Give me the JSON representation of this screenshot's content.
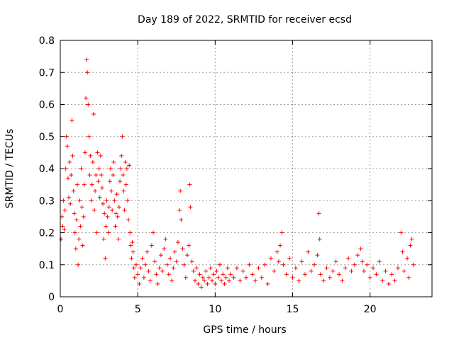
{
  "chart_data": {
    "type": "scatter",
    "title": "Day 189 of 2022, SRMTID for receiver ecsd",
    "xlabel": "GPS time / hours",
    "ylabel": "SRMTID / TECUs",
    "xlim": [
      0,
      24
    ],
    "ylim": [
      0,
      0.8
    ],
    "xticks": [
      "0",
      "5",
      "10",
      "15",
      "20"
    ],
    "yticks": [
      "0",
      "0.1",
      "0.2",
      "0.3",
      "0.4",
      "0.5",
      "0.6",
      "0.7",
      "0.8"
    ],
    "grid": true,
    "marker": "+",
    "color": "#ff0000",
    "series": [
      {
        "name": "SRMTID",
        "points": [
          [
            0.05,
            0.18
          ],
          [
            0.1,
            0.25
          ],
          [
            0.15,
            0.22
          ],
          [
            0.2,
            0.3
          ],
          [
            0.25,
            0.21
          ],
          [
            0.3,
            0.27
          ],
          [
            0.35,
            0.4
          ],
          [
            0.4,
            0.5
          ],
          [
            0.45,
            0.47
          ],
          [
            0.5,
            0.37
          ],
          [
            0.55,
            0.31
          ],
          [
            0.6,
            0.42
          ],
          [
            0.65,
            0.29
          ],
          [
            0.7,
            0.38
          ],
          [
            0.75,
            0.55
          ],
          [
            0.8,
            0.44
          ],
          [
            0.85,
            0.33
          ],
          [
            0.9,
            0.26
          ],
          [
            0.95,
            0.2
          ],
          [
            1.0,
            0.15
          ],
          [
            1.05,
            0.24
          ],
          [
            1.1,
            0.35
          ],
          [
            1.15,
            0.1
          ],
          [
            1.2,
            0.18
          ],
          [
            1.25,
            0.3
          ],
          [
            1.3,
            0.22
          ],
          [
            1.35,
            0.4
          ],
          [
            1.4,
            0.28
          ],
          [
            1.45,
            0.16
          ],
          [
            1.5,
            0.25
          ],
          [
            1.55,
            0.35
          ],
          [
            1.6,
            0.45
          ],
          [
            1.65,
            0.62
          ],
          [
            1.7,
            0.74
          ],
          [
            1.75,
            0.7
          ],
          [
            1.8,
            0.6
          ],
          [
            1.85,
            0.5
          ],
          [
            1.9,
            0.38
          ],
          [
            1.95,
            0.44
          ],
          [
            2.0,
            0.3
          ],
          [
            2.05,
            0.35
          ],
          [
            2.1,
            0.42
          ],
          [
            2.15,
            0.57
          ],
          [
            2.2,
            0.27
          ],
          [
            2.25,
            0.33
          ],
          [
            2.3,
            0.38
          ],
          [
            2.35,
            0.2
          ],
          [
            2.4,
            0.45
          ],
          [
            2.45,
            0.36
          ],
          [
            2.5,
            0.4
          ],
          [
            2.55,
            0.31
          ],
          [
            2.6,
            0.44
          ],
          [
            2.65,
            0.38
          ],
          [
            2.7,
            0.34
          ],
          [
            2.75,
            0.29
          ],
          [
            2.8,
            0.18
          ],
          [
            2.85,
            0.26
          ],
          [
            2.9,
            0.12
          ],
          [
            2.95,
            0.22
          ],
          [
            3.0,
            0.3
          ],
          [
            3.05,
            0.25
          ],
          [
            3.1,
            0.2
          ],
          [
            3.15,
            0.28
          ],
          [
            3.2,
            0.36
          ],
          [
            3.25,
            0.4
          ],
          [
            3.3,
            0.33
          ],
          [
            3.35,
            0.27
          ],
          [
            3.4,
            0.38
          ],
          [
            3.45,
            0.42
          ],
          [
            3.5,
            0.3
          ],
          [
            3.55,
            0.22
          ],
          [
            3.6,
            0.26
          ],
          [
            3.65,
            0.32
          ],
          [
            3.7,
            0.25
          ],
          [
            3.75,
            0.18
          ],
          [
            3.8,
            0.28
          ],
          [
            3.85,
            0.36
          ],
          [
            3.9,
            0.4
          ],
          [
            3.95,
            0.44
          ],
          [
            4.0,
            0.5
          ],
          [
            4.05,
            0.38
          ],
          [
            4.1,
            0.33
          ],
          [
            4.15,
            0.27
          ],
          [
            4.2,
            0.42
          ],
          [
            4.25,
            0.35
          ],
          [
            4.3,
            0.4
          ],
          [
            4.35,
            0.3
          ],
          [
            4.4,
            0.24
          ],
          [
            4.45,
            0.41
          ],
          [
            4.5,
            0.2
          ],
          [
            4.55,
            0.16
          ],
          [
            4.6,
            0.12
          ],
          [
            4.65,
            0.17
          ],
          [
            4.7,
            0.14
          ],
          [
            4.75,
            0.09
          ],
          [
            4.8,
            0.06
          ],
          [
            4.9,
            0.1
          ],
          [
            5.0,
            0.07
          ],
          [
            5.1,
            0.04
          ],
          [
            5.2,
            0.09
          ],
          [
            5.3,
            0.12
          ],
          [
            5.4,
            0.06
          ],
          [
            5.5,
            0.1
          ],
          [
            5.6,
            0.14
          ],
          [
            5.7,
            0.08
          ],
          [
            5.8,
            0.05
          ],
          [
            5.9,
            0.16
          ],
          [
            6.0,
            0.2
          ],
          [
            6.1,
            0.11
          ],
          [
            6.2,
            0.07
          ],
          [
            6.3,
            0.04
          ],
          [
            6.4,
            0.09
          ],
          [
            6.5,
            0.13
          ],
          [
            6.6,
            0.08
          ],
          [
            6.7,
            0.15
          ],
          [
            6.8,
            0.18
          ],
          [
            6.9,
            0.1
          ],
          [
            7.0,
            0.07
          ],
          [
            7.1,
            0.12
          ],
          [
            7.2,
            0.05
          ],
          [
            7.3,
            0.09
          ],
          [
            7.4,
            0.14
          ],
          [
            7.5,
            0.11
          ],
          [
            7.6,
            0.17
          ],
          [
            7.7,
            0.27
          ],
          [
            7.75,
            0.33
          ],
          [
            7.8,
            0.24
          ],
          [
            7.9,
            0.15
          ],
          [
            8.0,
            0.1
          ],
          [
            8.1,
            0.06
          ],
          [
            8.2,
            0.13
          ],
          [
            8.3,
            0.16
          ],
          [
            8.35,
            0.35
          ],
          [
            8.4,
            0.28
          ],
          [
            8.5,
            0.11
          ],
          [
            8.6,
            0.08
          ],
          [
            8.7,
            0.05
          ],
          [
            8.8,
            0.09
          ],
          [
            8.9,
            0.04
          ],
          [
            9.0,
            0.07
          ],
          [
            9.1,
            0.03
          ],
          [
            9.2,
            0.06
          ],
          [
            9.3,
            0.05
          ],
          [
            9.4,
            0.08
          ],
          [
            9.5,
            0.04
          ],
          [
            9.6,
            0.06
          ],
          [
            9.7,
            0.09
          ],
          [
            9.8,
            0.05
          ],
          [
            9.9,
            0.07
          ],
          [
            10.0,
            0.04
          ],
          [
            10.1,
            0.08
          ],
          [
            10.2,
            0.06
          ],
          [
            10.3,
            0.1
          ],
          [
            10.4,
            0.05
          ],
          [
            10.5,
            0.07
          ],
          [
            10.6,
            0.04
          ],
          [
            10.7,
            0.06
          ],
          [
            10.8,
            0.09
          ],
          [
            10.9,
            0.05
          ],
          [
            11.0,
            0.07
          ],
          [
            11.2,
            0.06
          ],
          [
            11.4,
            0.09
          ],
          [
            11.6,
            0.05
          ],
          [
            11.8,
            0.08
          ],
          [
            12.0,
            0.06
          ],
          [
            12.2,
            0.1
          ],
          [
            12.4,
            0.07
          ],
          [
            12.6,
            0.05
          ],
          [
            12.8,
            0.09
          ],
          [
            13.0,
            0.06
          ],
          [
            13.2,
            0.1
          ],
          [
            13.4,
            0.04
          ],
          [
            13.6,
            0.12
          ],
          [
            13.8,
            0.08
          ],
          [
            14.0,
            0.14
          ],
          [
            14.1,
            0.11
          ],
          [
            14.2,
            0.16
          ],
          [
            14.3,
            0.2
          ],
          [
            14.4,
            0.1
          ],
          [
            14.6,
            0.07
          ],
          [
            14.8,
            0.12
          ],
          [
            15.0,
            0.06
          ],
          [
            15.2,
            0.09
          ],
          [
            15.4,
            0.05
          ],
          [
            15.6,
            0.11
          ],
          [
            15.8,
            0.07
          ],
          [
            16.0,
            0.14
          ],
          [
            16.2,
            0.08
          ],
          [
            16.4,
            0.1
          ],
          [
            16.6,
            0.13
          ],
          [
            16.7,
            0.26
          ],
          [
            16.75,
            0.18
          ],
          [
            16.8,
            0.07
          ],
          [
            17.0,
            0.05
          ],
          [
            17.2,
            0.09
          ],
          [
            17.4,
            0.06
          ],
          [
            17.6,
            0.08
          ],
          [
            17.8,
            0.11
          ],
          [
            18.0,
            0.07
          ],
          [
            18.2,
            0.05
          ],
          [
            18.4,
            0.09
          ],
          [
            18.6,
            0.12
          ],
          [
            18.8,
            0.08
          ],
          [
            19.0,
            0.1
          ],
          [
            19.2,
            0.13
          ],
          [
            19.4,
            0.15
          ],
          [
            19.5,
            0.11
          ],
          [
            19.6,
            0.08
          ],
          [
            19.8,
            0.1
          ],
          [
            20.0,
            0.06
          ],
          [
            20.2,
            0.09
          ],
          [
            20.4,
            0.07
          ],
          [
            20.6,
            0.11
          ],
          [
            20.8,
            0.05
          ],
          [
            21.0,
            0.08
          ],
          [
            21.2,
            0.04
          ],
          [
            21.4,
            0.07
          ],
          [
            21.6,
            0.05
          ],
          [
            21.8,
            0.09
          ],
          [
            22.0,
            0.2
          ],
          [
            22.1,
            0.14
          ],
          [
            22.2,
            0.08
          ],
          [
            22.4,
            0.12
          ],
          [
            22.5,
            0.06
          ],
          [
            22.6,
            0.16
          ],
          [
            22.7,
            0.18
          ],
          [
            22.8,
            0.1
          ]
        ]
      }
    ]
  }
}
